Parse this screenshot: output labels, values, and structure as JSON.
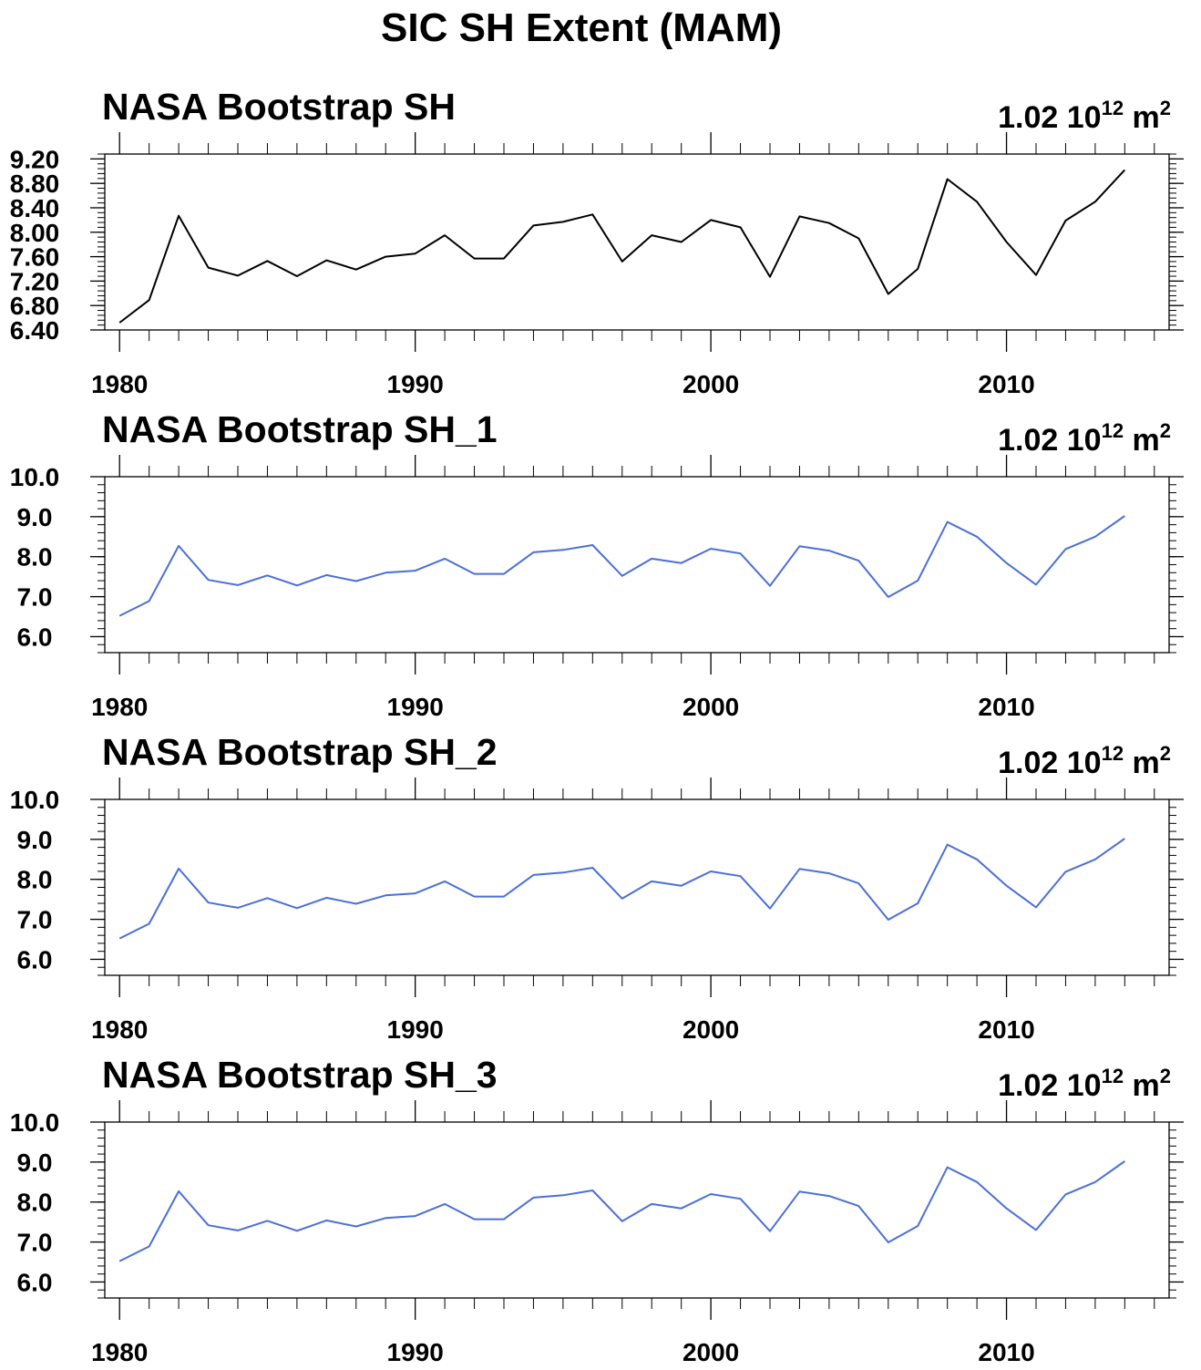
{
  "figure": {
    "title": "SIC SH Extent (MAM)"
  },
  "chart_data": [
    {
      "type": "line",
      "title": "NASA Bootstrap SH",
      "units": {
        "mantissa": "1.02 10",
        "exponent": "12",
        "unit": "m",
        "unit_power": "2"
      },
      "x": [
        1980,
        1981,
        1982,
        1983,
        1984,
        1985,
        1986,
        1987,
        1988,
        1989,
        1990,
        1991,
        1992,
        1993,
        1994,
        1995,
        1996,
        1997,
        1998,
        1999,
        2000,
        2001,
        2002,
        2003,
        2004,
        2005,
        2006,
        2007,
        2008,
        2009,
        2010,
        2011,
        2012,
        2013,
        2014
      ],
      "series": [
        {
          "color": "#000000",
          "values": [
            6.52,
            6.89,
            8.27,
            7.42,
            7.29,
            7.53,
            7.28,
            7.54,
            7.39,
            7.6,
            7.65,
            7.95,
            7.57,
            7.57,
            8.11,
            8.17,
            8.29,
            7.52,
            7.95,
            7.84,
            8.2,
            8.08,
            7.27,
            8.26,
            8.15,
            7.9,
            6.99,
            7.4,
            8.87,
            8.5,
            7.84,
            7.3,
            8.19,
            8.5,
            9.02
          ]
        }
      ],
      "xlim": [
        1979.5,
        2015.5
      ],
      "ylim": [
        6.4,
        9.28
      ],
      "xticks": [
        1980,
        1990,
        2000,
        2010
      ],
      "xtick_labels": [
        "1980",
        "1990",
        "2000",
        "2010"
      ],
      "yticks": [
        6.4,
        6.8,
        7.2,
        7.6,
        8.0,
        8.4,
        8.8,
        9.2
      ],
      "ytick_labels": [
        "6.40",
        "6.80",
        "7.20",
        "7.60",
        "8.00",
        "8.40",
        "8.80",
        "9.20"
      ],
      "grid": false
    },
    {
      "type": "line",
      "title": "NASA Bootstrap SH_1",
      "units": {
        "mantissa": "1.02 10",
        "exponent": "12",
        "unit": "m",
        "unit_power": "2"
      },
      "x": [
        1980,
        1981,
        1982,
        1983,
        1984,
        1985,
        1986,
        1987,
        1988,
        1989,
        1990,
        1991,
        1992,
        1993,
        1994,
        1995,
        1996,
        1997,
        1998,
        1999,
        2000,
        2001,
        2002,
        2003,
        2004,
        2005,
        2006,
        2007,
        2008,
        2009,
        2010,
        2011,
        2012,
        2013,
        2014
      ],
      "series": [
        {
          "color": "#4a6fd8",
          "values": [
            6.52,
            6.89,
            8.27,
            7.42,
            7.29,
            7.53,
            7.28,
            7.54,
            7.39,
            7.6,
            7.65,
            7.95,
            7.57,
            7.57,
            8.11,
            8.17,
            8.29,
            7.52,
            7.95,
            7.84,
            8.2,
            8.08,
            7.27,
            8.26,
            8.15,
            7.9,
            6.99,
            7.4,
            8.87,
            8.5,
            7.84,
            7.3,
            8.19,
            8.5,
            9.02
          ]
        }
      ],
      "xlim": [
        1979.5,
        2015.5
      ],
      "ylim": [
        5.6,
        10.0
      ],
      "xticks": [
        1980,
        1990,
        2000,
        2010
      ],
      "xtick_labels": [
        "1980",
        "1990",
        "2000",
        "2010"
      ],
      "yticks": [
        6.0,
        7.0,
        8.0,
        9.0,
        10.0
      ],
      "ytick_labels": [
        "6.0",
        "7.0",
        "8.0",
        "9.0",
        "10.0"
      ],
      "grid": false
    },
    {
      "type": "line",
      "title": "NASA Bootstrap SH_2",
      "units": {
        "mantissa": "1.02 10",
        "exponent": "12",
        "unit": "m",
        "unit_power": "2"
      },
      "x": [
        1980,
        1981,
        1982,
        1983,
        1984,
        1985,
        1986,
        1987,
        1988,
        1989,
        1990,
        1991,
        1992,
        1993,
        1994,
        1995,
        1996,
        1997,
        1998,
        1999,
        2000,
        2001,
        2002,
        2003,
        2004,
        2005,
        2006,
        2007,
        2008,
        2009,
        2010,
        2011,
        2012,
        2013,
        2014
      ],
      "series": [
        {
          "color": "#4a6fd8",
          "values": [
            6.52,
            6.89,
            8.27,
            7.42,
            7.29,
            7.53,
            7.28,
            7.54,
            7.39,
            7.6,
            7.65,
            7.95,
            7.57,
            7.57,
            8.11,
            8.17,
            8.29,
            7.52,
            7.95,
            7.84,
            8.2,
            8.08,
            7.27,
            8.26,
            8.15,
            7.9,
            6.99,
            7.4,
            8.87,
            8.5,
            7.84,
            7.3,
            8.19,
            8.5,
            9.02
          ]
        }
      ],
      "xlim": [
        1979.5,
        2015.5
      ],
      "ylim": [
        5.6,
        10.0
      ],
      "xticks": [
        1980,
        1990,
        2000,
        2010
      ],
      "xtick_labels": [
        "1980",
        "1990",
        "2000",
        "2010"
      ],
      "yticks": [
        6.0,
        7.0,
        8.0,
        9.0,
        10.0
      ],
      "ytick_labels": [
        "6.0",
        "7.0",
        "8.0",
        "9.0",
        "10.0"
      ],
      "grid": false
    },
    {
      "type": "line",
      "title": "NASA Bootstrap SH_3",
      "units": {
        "mantissa": "1.02 10",
        "exponent": "12",
        "unit": "m",
        "unit_power": "2"
      },
      "x": [
        1980,
        1981,
        1982,
        1983,
        1984,
        1985,
        1986,
        1987,
        1988,
        1989,
        1990,
        1991,
        1992,
        1993,
        1994,
        1995,
        1996,
        1997,
        1998,
        1999,
        2000,
        2001,
        2002,
        2003,
        2004,
        2005,
        2006,
        2007,
        2008,
        2009,
        2010,
        2011,
        2012,
        2013,
        2014
      ],
      "series": [
        {
          "color": "#4a6fd8",
          "values": [
            6.52,
            6.89,
            8.27,
            7.42,
            7.29,
            7.53,
            7.28,
            7.54,
            7.39,
            7.6,
            7.65,
            7.95,
            7.57,
            7.57,
            8.11,
            8.17,
            8.29,
            7.52,
            7.95,
            7.84,
            8.2,
            8.08,
            7.27,
            8.26,
            8.15,
            7.9,
            6.99,
            7.4,
            8.87,
            8.5,
            7.84,
            7.3,
            8.19,
            8.5,
            9.02
          ]
        }
      ],
      "xlim": [
        1979.5,
        2015.5
      ],
      "ylim": [
        5.6,
        10.0
      ],
      "xticks": [
        1980,
        1990,
        2000,
        2010
      ],
      "xtick_labels": [
        "1980",
        "1990",
        "2000",
        "2010"
      ],
      "yticks": [
        6.0,
        7.0,
        8.0,
        9.0,
        10.0
      ],
      "ytick_labels": [
        "6.0",
        "7.0",
        "8.0",
        "9.0",
        "10.0"
      ],
      "grid": false
    }
  ]
}
